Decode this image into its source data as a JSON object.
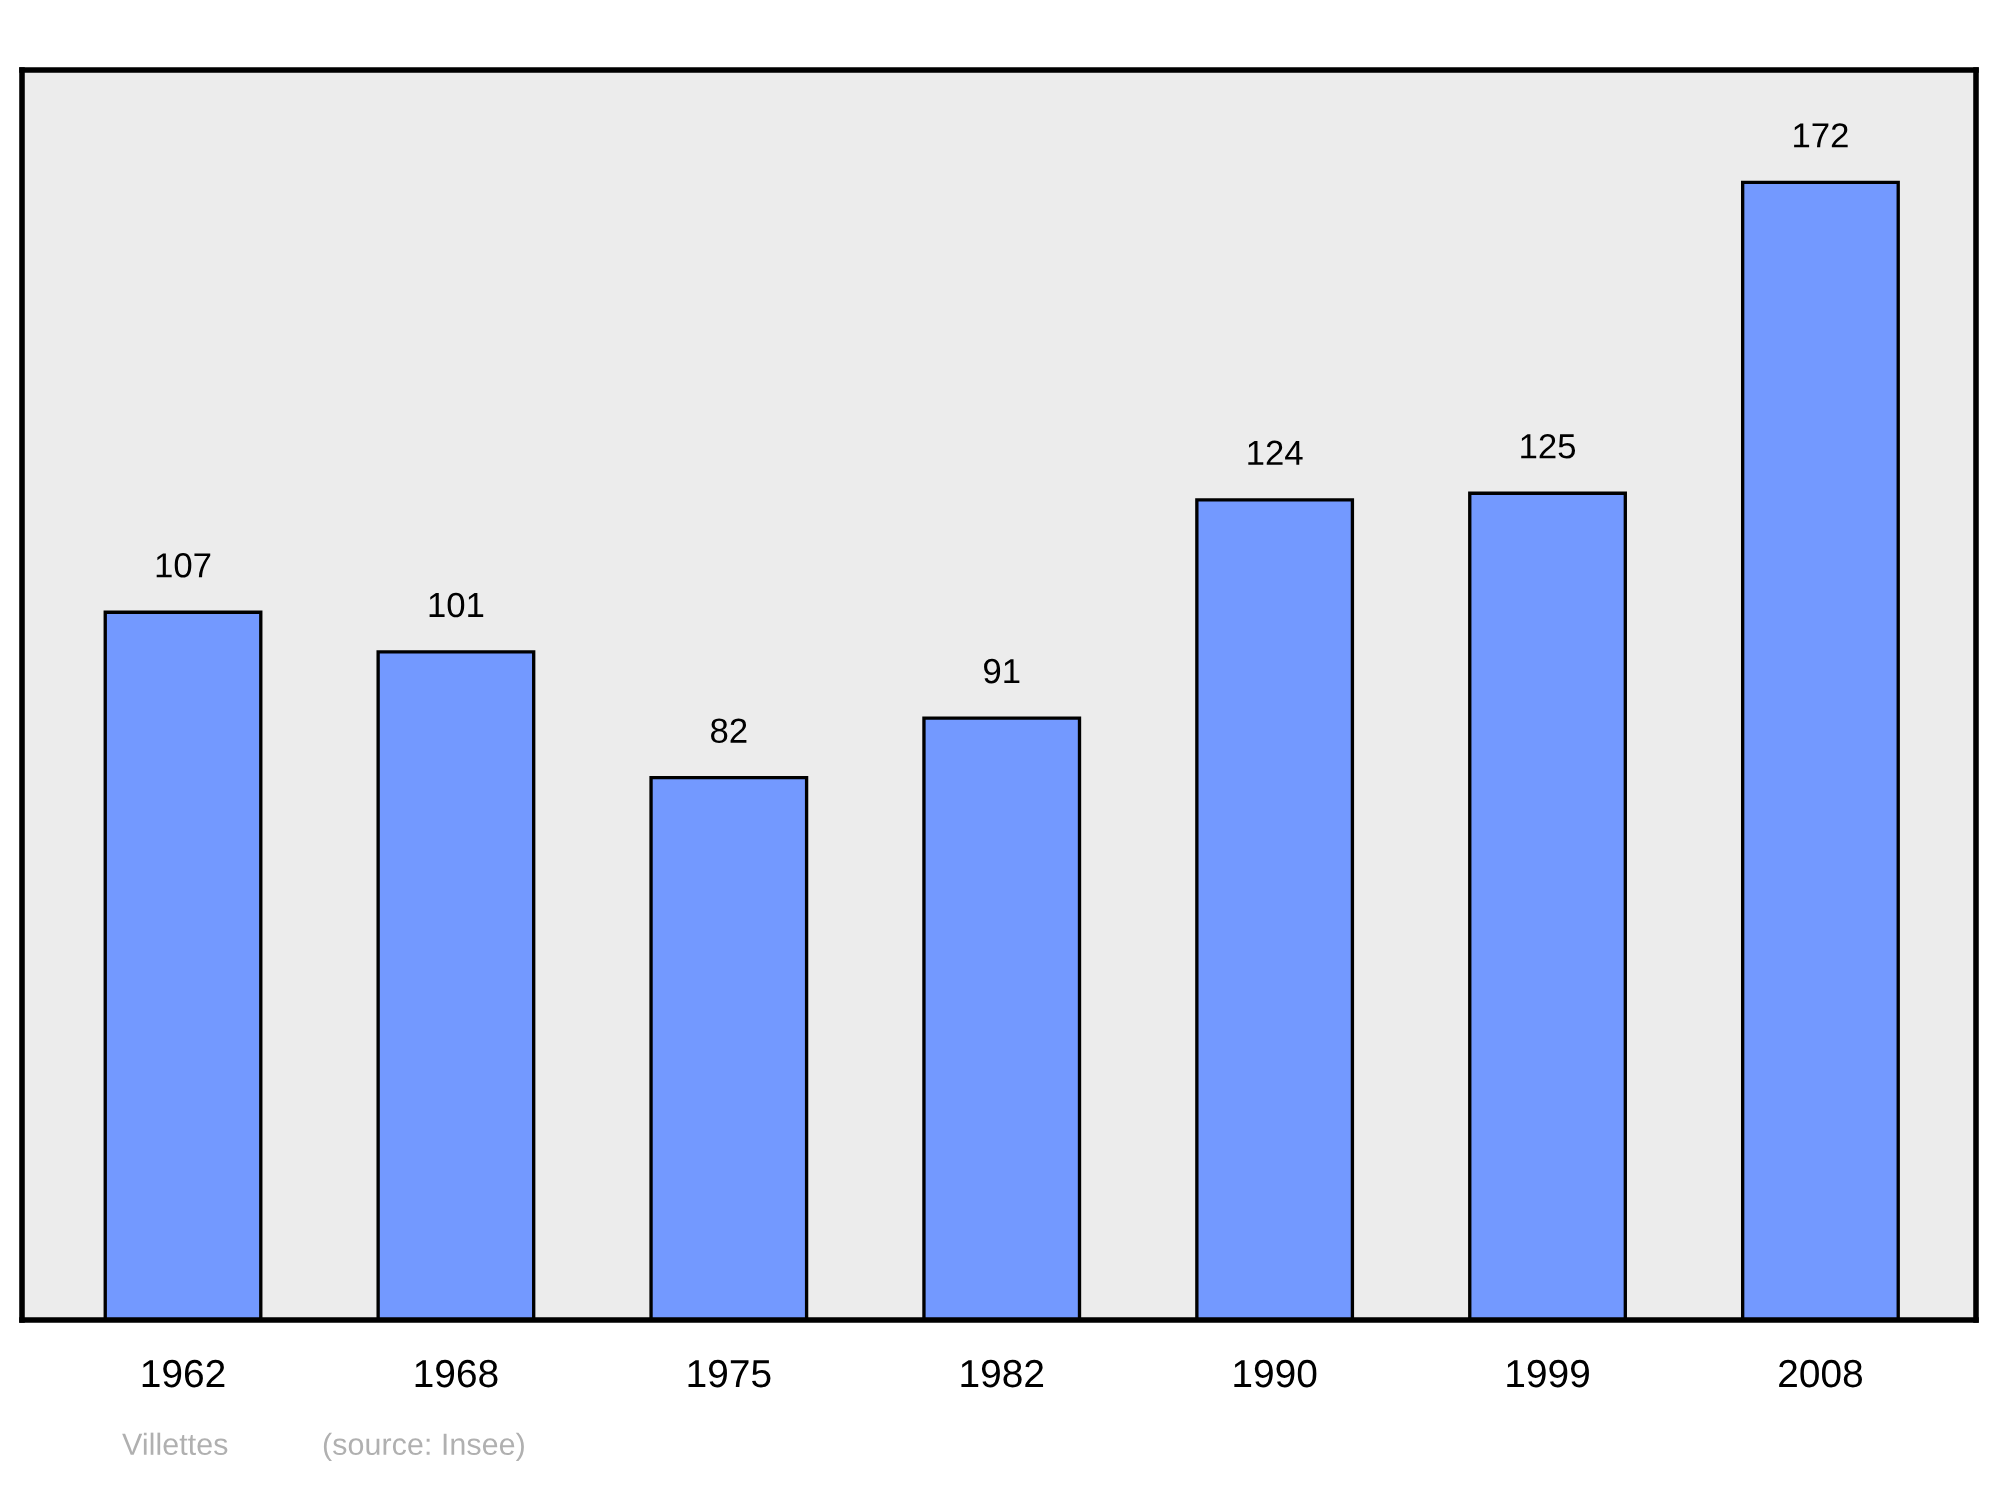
{
  "chart_data": {
    "type": "bar",
    "categories": [
      "1962",
      "1968",
      "1975",
      "1982",
      "1990",
      "1999",
      "2008"
    ],
    "values": [
      107,
      101,
      82,
      91,
      124,
      125,
      172
    ],
    "color": "#7399ff",
    "ylim": [
      0,
      189
    ],
    "data_labels": true,
    "grid": false,
    "legend": false,
    "tick_labels": "x",
    "annotations": [
      "Villettes",
      "(source: Insee)"
    ]
  }
}
